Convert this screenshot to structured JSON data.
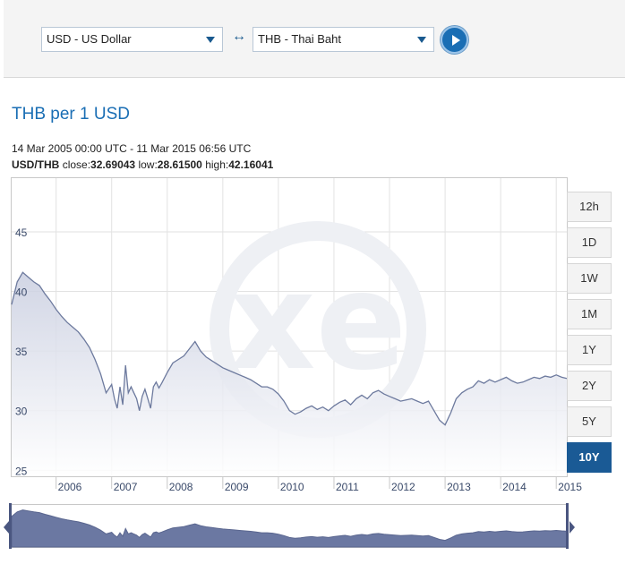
{
  "converter": {
    "from_currency": "USD - US Dollar",
    "to_currency": "THB - Thai Baht",
    "swap_symbol": "↔"
  },
  "chart_header": {
    "title": "THB per 1 USD",
    "date_range": "14 Mar 2005 00:00 UTC - 11 Mar 2015 06:56 UTC",
    "pair": "USD/THB",
    "close_label": "close:",
    "close_value": "32.69043",
    "low_label": "low:",
    "low_value": "28.61500",
    "high_label": "high:",
    "high_value": "42.16041"
  },
  "range_buttons": [
    "12h",
    "1D",
    "1W",
    "1M",
    "1Y",
    "2Y",
    "5Y",
    "10Y"
  ],
  "active_range": "10Y",
  "colors": {
    "accent": "#1a6eb4",
    "line": "#6d7a9e",
    "navigator": "#6b78a2",
    "active_button": "#1a5a95"
  },
  "chart_data": {
    "type": "area",
    "title": "THB per 1 USD",
    "xlabel": "",
    "ylabel": "",
    "x_ticks": [
      "2006",
      "2007",
      "2008",
      "2009",
      "2010",
      "2011",
      "2012",
      "2013",
      "2014",
      "2015"
    ],
    "y_ticks": [
      25,
      30,
      35,
      40,
      45
    ],
    "xlim": [
      2005.2,
      2015.19
    ],
    "ylim": [
      24.5,
      49.5
    ],
    "grid": true,
    "series": [
      {
        "x": [
          2005.2,
          2005.3,
          2005.4,
          2005.5,
          2005.6,
          2005.7,
          2005.8,
          2005.9,
          2006.0,
          2006.1,
          2006.2,
          2006.3,
          2006.4,
          2006.5,
          2006.6,
          2006.7,
          2006.8,
          2006.9,
          2007.0,
          2007.05,
          2007.1,
          2007.15,
          2007.2,
          2007.25,
          2007.3,
          2007.35,
          2007.4,
          2007.45,
          2007.5,
          2007.55,
          2007.6,
          2007.65,
          2007.7,
          2007.75,
          2007.8,
          2007.85,
          2007.9,
          2008.0,
          2008.1,
          2008.2,
          2008.3,
          2008.4,
          2008.5,
          2008.6,
          2008.7,
          2008.8,
          2008.9,
          2009.0,
          2009.1,
          2009.2,
          2009.3,
          2009.4,
          2009.5,
          2009.6,
          2009.7,
          2009.8,
          2009.9,
          2010.0,
          2010.1,
          2010.2,
          2010.3,
          2010.4,
          2010.5,
          2010.6,
          2010.7,
          2010.8,
          2010.9,
          2011.0,
          2011.1,
          2011.2,
          2011.3,
          2011.4,
          2011.5,
          2011.6,
          2011.7,
          2011.8,
          2011.9,
          2012.0,
          2012.1,
          2012.2,
          2012.3,
          2012.4,
          2012.5,
          2012.6,
          2012.7,
          2012.8,
          2012.9,
          2013.0,
          2013.1,
          2013.2,
          2013.3,
          2013.4,
          2013.5,
          2013.6,
          2013.7,
          2013.8,
          2013.9,
          2014.0,
          2014.1,
          2014.2,
          2014.3,
          2014.4,
          2014.5,
          2014.6,
          2014.7,
          2014.8,
          2014.9,
          2015.0,
          2015.1,
          2015.19
        ],
        "values": [
          38.9,
          40.8,
          41.6,
          41.2,
          40.8,
          40.5,
          39.8,
          39.2,
          38.5,
          37.9,
          37.4,
          37.0,
          36.6,
          36.0,
          35.3,
          34.3,
          33.1,
          31.5,
          32.2,
          31.0,
          30.2,
          32.0,
          30.5,
          33.8,
          31.5,
          32.0,
          31.5,
          31.0,
          30.0,
          31.2,
          31.8,
          31.0,
          30.2,
          32.0,
          32.4,
          31.9,
          32.3,
          33.2,
          34.0,
          34.3,
          34.6,
          35.2,
          35.8,
          35.0,
          34.5,
          34.2,
          33.9,
          33.6,
          33.4,
          33.2,
          33.0,
          32.8,
          32.6,
          32.3,
          32.0,
          32.0,
          31.8,
          31.4,
          30.8,
          30.0,
          29.7,
          29.9,
          30.2,
          30.4,
          30.1,
          30.3,
          30.0,
          30.4,
          30.7,
          30.9,
          30.5,
          31.0,
          31.3,
          31.0,
          31.5,
          31.7,
          31.4,
          31.2,
          31.0,
          30.8,
          30.9,
          31.0,
          30.8,
          30.6,
          30.8,
          30.0,
          29.2,
          28.8,
          29.8,
          31.0,
          31.5,
          31.8,
          32.0,
          32.5,
          32.3,
          32.6,
          32.4,
          32.6,
          32.8,
          32.5,
          32.3,
          32.4,
          32.6,
          32.8,
          32.7,
          32.9,
          32.8,
          33.0,
          32.8,
          32.7
        ]
      }
    ]
  }
}
